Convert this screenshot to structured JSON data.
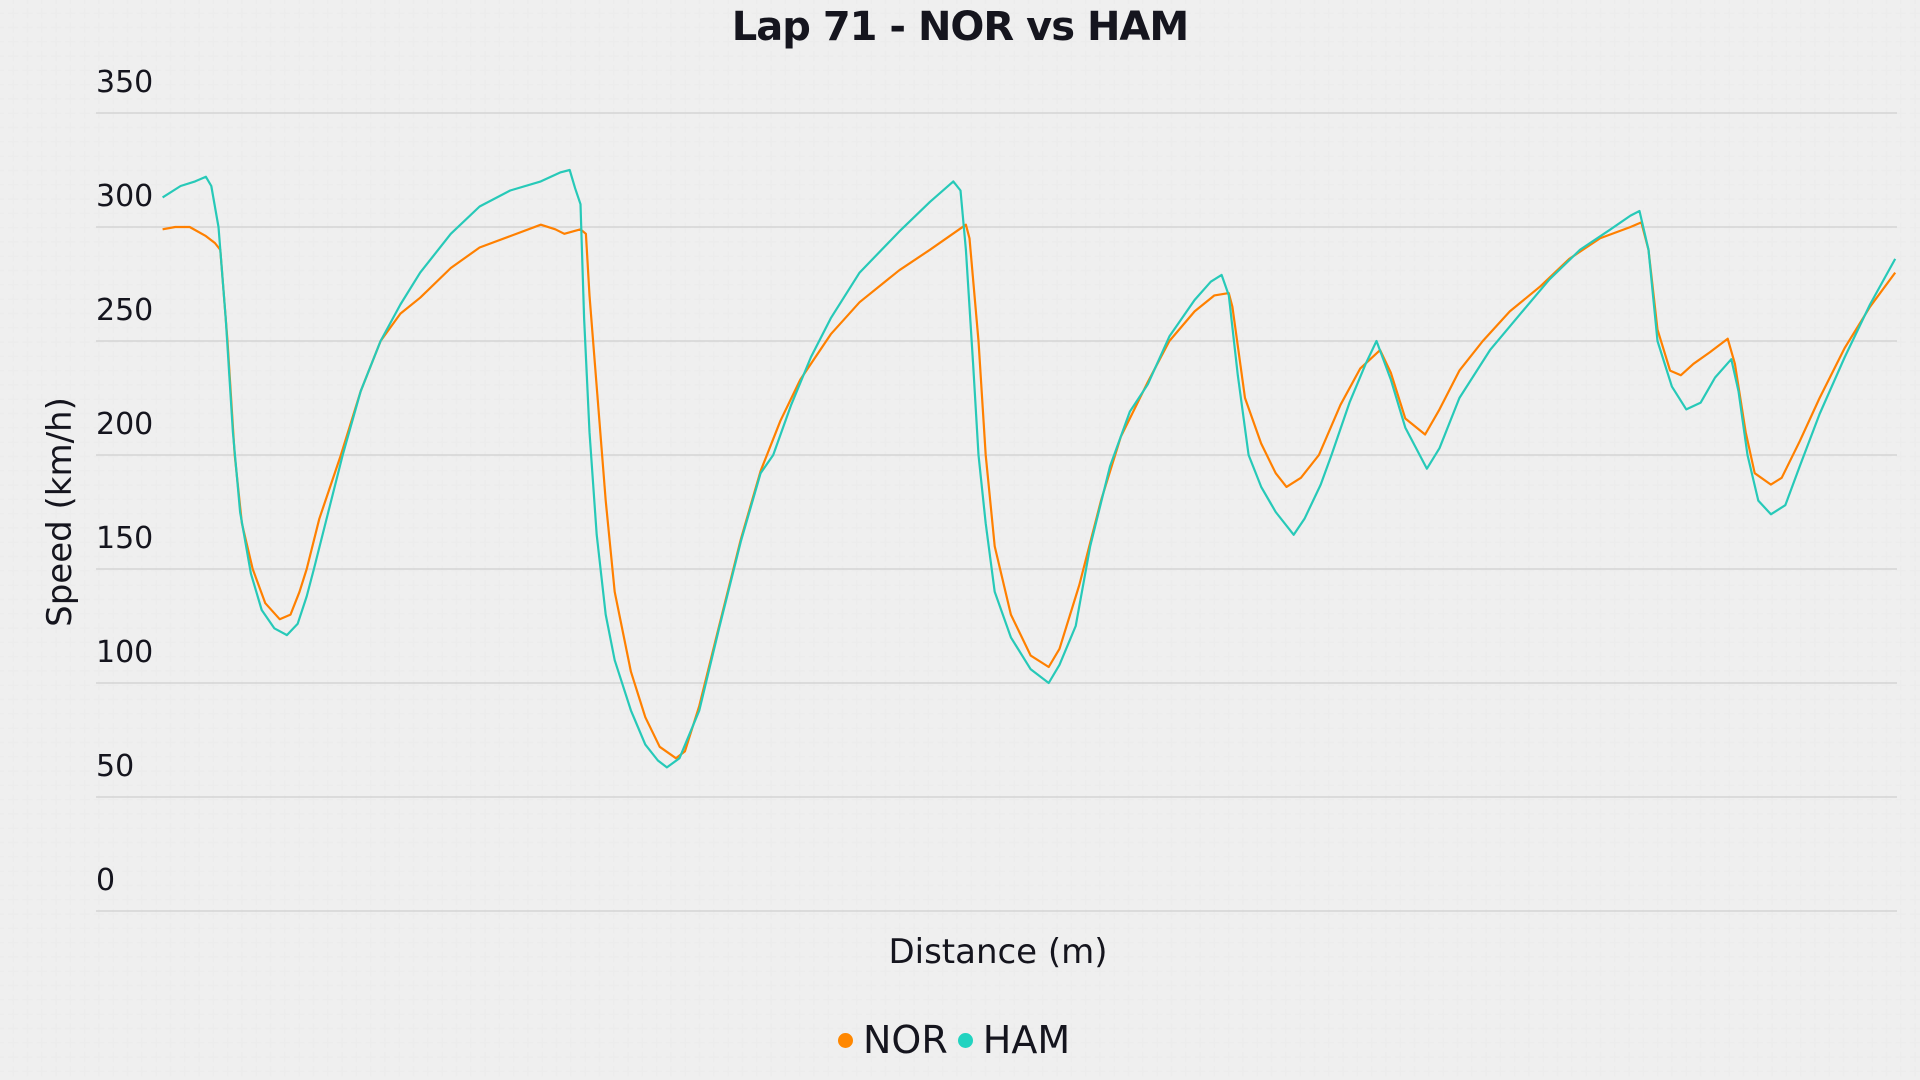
{
  "title": "Lap 71 - NOR vs HAM",
  "colors": {
    "NOR": "#FF8000",
    "HAM": "#27C9B8",
    "NOR_legend": "#FF8700",
    "HAM_legend": "#22D3C0",
    "grid": "#cfcfcf",
    "text": "#15151e"
  },
  "legend": [
    {
      "name": "NOR",
      "color": "#FF8700"
    },
    {
      "name": "HAM",
      "color": "#22D3C0"
    }
  ],
  "chart_data": {
    "type": "line",
    "title": "Lap 71 - NOR vs HAM",
    "xlabel": "Distance (m)",
    "ylabel": "Speed (km/h)",
    "ylim": [
      0,
      350
    ],
    "yticks": [
      0,
      50,
      100,
      150,
      200,
      250,
      300,
      350
    ],
    "xticks": [],
    "grid": "horizontal",
    "legend_position": "bottom-center",
    "x_note": "x values are relative positions along the distance axis (0 = left edge, 1 = right edge); no distance tick labels are shown",
    "series": [
      {
        "name": "NOR",
        "color": "#FF8000",
        "points": [
          [
            0.037,
            299
          ],
          [
            0.044,
            300
          ],
          [
            0.052,
            300
          ],
          [
            0.061,
            296
          ],
          [
            0.066,
            293
          ],
          [
            0.069,
            290
          ],
          [
            0.073,
            250
          ],
          [
            0.077,
            200
          ],
          [
            0.081,
            170
          ],
          [
            0.087,
            150
          ],
          [
            0.094,
            135
          ],
          [
            0.102,
            128
          ],
          [
            0.108,
            130
          ],
          [
            0.113,
            140
          ],
          [
            0.117,
            150
          ],
          [
            0.124,
            172
          ],
          [
            0.136,
            200
          ],
          [
            0.147,
            228
          ],
          [
            0.158,
            250
          ],
          [
            0.169,
            262
          ],
          [
            0.18,
            269
          ],
          [
            0.197,
            282
          ],
          [
            0.213,
            291
          ],
          [
            0.23,
            296
          ],
          [
            0.247,
            301
          ],
          [
            0.255,
            299
          ],
          [
            0.26,
            297
          ],
          [
            0.269,
            299
          ],
          [
            0.272,
            297
          ],
          [
            0.274,
            270
          ],
          [
            0.278,
            230
          ],
          [
            0.283,
            180
          ],
          [
            0.288,
            140
          ],
          [
            0.297,
            105
          ],
          [
            0.305,
            85
          ],
          [
            0.313,
            72
          ],
          [
            0.322,
            67
          ],
          [
            0.327,
            70
          ],
          [
            0.335,
            90
          ],
          [
            0.346,
            125
          ],
          [
            0.358,
            163
          ],
          [
            0.369,
            193
          ],
          [
            0.38,
            215
          ],
          [
            0.391,
            233
          ],
          [
            0.408,
            253
          ],
          [
            0.424,
            267
          ],
          [
            0.446,
            281
          ],
          [
            0.463,
            290
          ],
          [
            0.483,
            301
          ],
          [
            0.485,
            295
          ],
          [
            0.49,
            250
          ],
          [
            0.494,
            200
          ],
          [
            0.499,
            160
          ],
          [
            0.508,
            130
          ],
          [
            0.519,
            112
          ],
          [
            0.529,
            107
          ],
          [
            0.535,
            115
          ],
          [
            0.546,
            143
          ],
          [
            0.558,
            180
          ],
          [
            0.569,
            208
          ],
          [
            0.584,
            232
          ],
          [
            0.596,
            250
          ],
          [
            0.61,
            263
          ],
          [
            0.621,
            270
          ],
          [
            0.629,
            271
          ],
          [
            0.631,
            265
          ],
          [
            0.638,
            225
          ],
          [
            0.647,
            205
          ],
          [
            0.655,
            192
          ],
          [
            0.661,
            186
          ],
          [
            0.669,
            190
          ],
          [
            0.679,
            200
          ],
          [
            0.691,
            222
          ],
          [
            0.702,
            238
          ],
          [
            0.713,
            246
          ],
          [
            0.719,
            236
          ],
          [
            0.727,
            216
          ],
          [
            0.738,
            209
          ],
          [
            0.746,
            220
          ],
          [
            0.757,
            237
          ],
          [
            0.77,
            250
          ],
          [
            0.785,
            263
          ],
          [
            0.802,
            274
          ],
          [
            0.818,
            286
          ],
          [
            0.835,
            295
          ],
          [
            0.852,
            300
          ],
          [
            0.858,
            302
          ],
          [
            0.862,
            290
          ],
          [
            0.867,
            255
          ],
          [
            0.874,
            237
          ],
          [
            0.88,
            235
          ],
          [
            0.887,
            240
          ],
          [
            0.896,
            245
          ],
          [
            0.906,
            251
          ],
          [
            0.91,
            240
          ],
          [
            0.916,
            210
          ],
          [
            0.921,
            192
          ],
          [
            0.93,
            187
          ],
          [
            0.936,
            190
          ],
          [
            0.946,
            206
          ],
          [
            0.957,
            225
          ],
          [
            0.971,
            247
          ],
          [
            0.985,
            265
          ],
          [
            0.999,
            280
          ]
        ]
      },
      {
        "name": "HAM",
        "color": "#27C9B8",
        "points": [
          [
            0.037,
            313
          ],
          [
            0.047,
            318
          ],
          [
            0.055,
            320
          ],
          [
            0.061,
            322
          ],
          [
            0.064,
            318
          ],
          [
            0.068,
            300
          ],
          [
            0.072,
            260
          ],
          [
            0.076,
            210
          ],
          [
            0.08,
            175
          ],
          [
            0.086,
            148
          ],
          [
            0.092,
            132
          ],
          [
            0.099,
            124
          ],
          [
            0.106,
            121
          ],
          [
            0.112,
            126
          ],
          [
            0.117,
            138
          ],
          [
            0.121,
            150
          ],
          [
            0.129,
            175
          ],
          [
            0.137,
            200
          ],
          [
            0.147,
            228
          ],
          [
            0.158,
            250
          ],
          [
            0.169,
            266
          ],
          [
            0.18,
            280
          ],
          [
            0.197,
            297
          ],
          [
            0.213,
            309
          ],
          [
            0.23,
            316
          ],
          [
            0.247,
            320
          ],
          [
            0.258,
            324
          ],
          [
            0.263,
            325
          ],
          [
            0.266,
            317
          ],
          [
            0.269,
            310
          ],
          [
            0.271,
            260
          ],
          [
            0.274,
            210
          ],
          [
            0.278,
            165
          ],
          [
            0.283,
            130
          ],
          [
            0.288,
            110
          ],
          [
            0.297,
            88
          ],
          [
            0.305,
            73
          ],
          [
            0.312,
            66
          ],
          [
            0.317,
            63
          ],
          [
            0.324,
            67
          ],
          [
            0.335,
            88
          ],
          [
            0.346,
            124
          ],
          [
            0.358,
            162
          ],
          [
            0.369,
            192
          ],
          [
            0.376,
            200
          ],
          [
            0.386,
            222
          ],
          [
            0.397,
            243
          ],
          [
            0.408,
            260
          ],
          [
            0.424,
            280
          ],
          [
            0.446,
            298
          ],
          [
            0.463,
            311
          ],
          [
            0.476,
            320
          ],
          [
            0.48,
            316
          ],
          [
            0.483,
            290
          ],
          [
            0.487,
            240
          ],
          [
            0.49,
            200
          ],
          [
            0.494,
            170
          ],
          [
            0.499,
            140
          ],
          [
            0.508,
            120
          ],
          [
            0.519,
            106
          ],
          [
            0.529,
            100
          ],
          [
            0.535,
            108
          ],
          [
            0.544,
            125
          ],
          [
            0.552,
            160
          ],
          [
            0.563,
            195
          ],
          [
            0.574,
            219
          ],
          [
            0.584,
            231
          ],
          [
            0.596,
            252
          ],
          [
            0.61,
            268
          ],
          [
            0.619,
            276
          ],
          [
            0.625,
            279
          ],
          [
            0.629,
            270
          ],
          [
            0.634,
            235
          ],
          [
            0.64,
            200
          ],
          [
            0.647,
            186
          ],
          [
            0.655,
            175
          ],
          [
            0.665,
            165
          ],
          [
            0.671,
            172
          ],
          [
            0.68,
            187
          ],
          [
            0.686,
            200
          ],
          [
            0.696,
            223
          ],
          [
            0.705,
            240
          ],
          [
            0.711,
            250
          ],
          [
            0.719,
            233
          ],
          [
            0.727,
            212
          ],
          [
            0.739,
            194
          ],
          [
            0.746,
            203
          ],
          [
            0.757,
            225
          ],
          [
            0.774,
            246
          ],
          [
            0.791,
            262
          ],
          [
            0.807,
            277
          ],
          [
            0.824,
            290
          ],
          [
            0.841,
            299
          ],
          [
            0.852,
            305
          ],
          [
            0.857,
            307
          ],
          [
            0.862,
            290
          ],
          [
            0.867,
            250
          ],
          [
            0.875,
            230
          ],
          [
            0.883,
            220
          ],
          [
            0.891,
            223
          ],
          [
            0.899,
            234
          ],
          [
            0.908,
            242
          ],
          [
            0.912,
            228
          ],
          [
            0.917,
            200
          ],
          [
            0.923,
            180
          ],
          [
            0.93,
            174
          ],
          [
            0.938,
            178
          ],
          [
            0.946,
            195
          ],
          [
            0.957,
            218
          ],
          [
            0.971,
            243
          ],
          [
            0.985,
            266
          ],
          [
            0.999,
            286
          ]
        ]
      }
    ]
  }
}
